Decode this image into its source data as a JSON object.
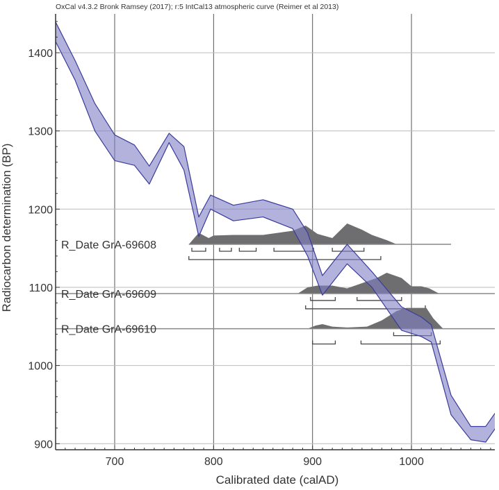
{
  "chart_data": {
    "type": "area",
    "title": "OxCal v4.3.2 Bronk Ramsey (2017); r:5 IntCal13 atmospheric curve (Reimer et al 2013)",
    "xlabel": "Calibrated date (calAD)",
    "ylabel": "Radiocarbon determination (BP)",
    "xlim": [
      640,
      1085
    ],
    "ylim": [
      895,
      1450
    ],
    "xticks": [
      700,
      800,
      900,
      1000
    ],
    "yticks": [
      900,
      1000,
      1100,
      1200,
      1300,
      1400
    ],
    "grid": true,
    "curve_color": "#7f7fc4",
    "distribution_color": "#6e6e70",
    "calibration_curve": {
      "year": [
        640,
        660,
        680,
        700,
        720,
        735,
        755,
        770,
        785,
        797,
        820,
        850,
        880,
        895,
        910,
        935,
        960,
        990,
        1010,
        1020,
        1040,
        1060,
        1075,
        1085
      ],
      "upper": [
        1440,
        1390,
        1335,
        1295,
        1282,
        1255,
        1297,
        1280,
        1190,
        1218,
        1205,
        1212,
        1200,
        1170,
        1115,
        1155,
        1120,
        1075,
        1062,
        1052,
        962,
        922,
        922,
        940
      ],
      "lower": [
        1415,
        1365,
        1300,
        1262,
        1256,
        1232,
        1285,
        1250,
        1165,
        1200,
        1185,
        1190,
        1175,
        1140,
        1090,
        1130,
        1100,
        1045,
        1037,
        1030,
        937,
        905,
        902,
        920
      ]
    },
    "dates": [
      {
        "label": "R_Date GrA-69608",
        "bp": 1155,
        "prob_year": [
          775,
          785,
          795,
          800,
          820,
          850,
          880,
          893,
          905,
          920,
          935,
          950,
          960,
          975,
          985
        ],
        "prob": [
          0,
          0.55,
          0.3,
          0.42,
          0.45,
          0.45,
          0.65,
          0.9,
          0.5,
          0.3,
          1,
          0.7,
          0.45,
          0.2,
          0
        ],
        "line_end": 1040,
        "range68": [
          [
            778,
            792
          ],
          [
            806,
            818
          ],
          [
            826,
            843
          ],
          [
            861,
            901
          ],
          [
            920,
            952
          ]
        ],
        "range95": [
          [
            775,
            969
          ]
        ]
      },
      {
        "label": "R_Date GrA-69609",
        "bp": 1092,
        "prob_year": [
          640,
          885,
          895,
          905,
          920,
          935,
          950,
          965,
          975,
          990,
          1000,
          1010,
          1018,
          1028
        ],
        "prob": [
          0,
          0,
          0.3,
          0.38,
          0.38,
          0.25,
          0.5,
          0.75,
          1,
          0.75,
          0.35,
          0.35,
          0.25,
          0
        ],
        "range68": [
          [
            898,
            923
          ],
          [
            945,
            990
          ]
        ],
        "range95": [
          [
            893,
            1014
          ]
        ]
      },
      {
        "label": "R_Date GrA-69610",
        "bp": 1047,
        "prob_year": [
          895,
          903,
          910,
          920,
          935,
          955,
          970,
          985,
          995,
          1015,
          1022,
          1032
        ],
        "prob": [
          0,
          0.15,
          0.22,
          0.1,
          0.06,
          0.1,
          0.4,
          0.85,
          1,
          1,
          0.5,
          0
        ],
        "range68": [
          [
            982,
            1020
          ]
        ],
        "range95": [
          [
            900,
            923
          ],
          [
            949,
            1029
          ]
        ]
      }
    ]
  }
}
